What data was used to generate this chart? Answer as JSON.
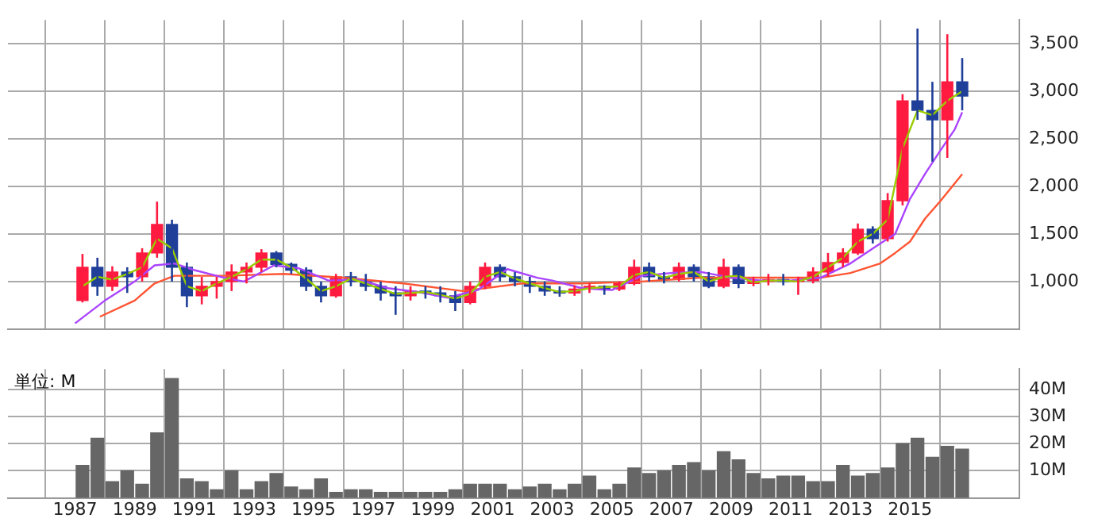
{
  "chart_data": [
    {
      "type": "candlestick",
      "xlim": [
        "1984-10",
        "2018-09"
      ],
      "xticks": [
        "1987",
        "1989",
        "1991",
        "1993",
        "1995",
        "1997",
        "1999",
        "2001",
        "2003",
        "2005",
        "2007",
        "2009",
        "2011",
        "2013",
        "2015"
      ],
      "ylim": [
        500,
        3750
      ],
      "yticks": [
        {
          "value": 1000,
          "label": "1,000"
        },
        {
          "value": 1500,
          "label": "1,500"
        },
        {
          "value": 2000,
          "label": "2,000"
        },
        {
          "value": 2500,
          "label": "2,500"
        },
        {
          "value": 3000,
          "label": "3,000"
        },
        {
          "value": 3500,
          "label": "3,500"
        }
      ],
      "tick_labels": "y",
      "grid": true,
      "legend": false,
      "marker": "none",
      "x": [
        "1987-04",
        "1987-10",
        "1988-04",
        "1988-10",
        "1989-04",
        "1989-10",
        "1990-04",
        "1990-10",
        "1991-04",
        "1991-10",
        "1992-04",
        "1992-10",
        "1993-04",
        "1993-10",
        "1994-04",
        "1994-10",
        "1995-04",
        "1995-10",
        "1996-04",
        "1996-10",
        "1997-04",
        "1997-10",
        "1998-04",
        "1998-10",
        "1999-04",
        "1999-10",
        "2000-04",
        "2000-10",
        "2001-04",
        "2001-10",
        "2002-04",
        "2002-10",
        "2003-04",
        "2003-10",
        "2004-04",
        "2004-10",
        "2005-04",
        "2005-10",
        "2006-04",
        "2006-10",
        "2007-04",
        "2007-10",
        "2008-04",
        "2008-10",
        "2009-04",
        "2009-10",
        "2010-04",
        "2010-10",
        "2011-04",
        "2011-10",
        "2012-04",
        "2012-10",
        "2013-04",
        "2013-10",
        "2014-04",
        "2014-10",
        "2015-04",
        "2015-10",
        "2016-04",
        "2016-10"
      ],
      "ohlc": [
        [
          800,
          1290,
          780,
          1150
        ],
        [
          1150,
          1250,
          850,
          950
        ],
        [
          950,
          1160,
          900,
          1100
        ],
        [
          1100,
          1150,
          880,
          1050
        ],
        [
          1050,
          1350,
          1000,
          1300
        ],
        [
          1300,
          1840,
          1250,
          1600
        ],
        [
          1600,
          1650,
          1000,
          1150
        ],
        [
          1150,
          1200,
          730,
          850
        ],
        [
          850,
          1050,
          760,
          950
        ],
        [
          950,
          1050,
          820,
          1000
        ],
        [
          1000,
          1180,
          900,
          1100
        ],
        [
          1100,
          1200,
          980,
          1150
        ],
        [
          1150,
          1340,
          1100,
          1300
        ],
        [
          1300,
          1320,
          1150,
          1180
        ],
        [
          1180,
          1200,
          1080,
          1120
        ],
        [
          1120,
          1150,
          900,
          950
        ],
        [
          950,
          1000,
          780,
          850
        ],
        [
          850,
          1080,
          830,
          1050
        ],
        [
          1050,
          1100,
          950,
          1000
        ],
        [
          1000,
          1080,
          900,
          950
        ],
        [
          950,
          1000,
          800,
          880
        ],
        [
          880,
          950,
          650,
          850
        ],
        [
          850,
          950,
          800,
          900
        ],
        [
          900,
          950,
          820,
          880
        ],
        [
          880,
          950,
          780,
          850
        ],
        [
          850,
          900,
          690,
          780
        ],
        [
          780,
          1000,
          760,
          950
        ],
        [
          950,
          1200,
          920,
          1150
        ],
        [
          1150,
          1180,
          1000,
          1050
        ],
        [
          1050,
          1100,
          950,
          1000
        ],
        [
          1000,
          1050,
          880,
          950
        ],
        [
          950,
          1000,
          850,
          900
        ],
        [
          900,
          950,
          840,
          880
        ],
        [
          880,
          960,
          850,
          920
        ],
        [
          920,
          980,
          880,
          950
        ],
        [
          950,
          960,
          860,
          920
        ],
        [
          920,
          1000,
          900,
          980
        ],
        [
          980,
          1230,
          960,
          1150
        ],
        [
          1150,
          1200,
          1000,
          1050
        ],
        [
          1050,
          1100,
          980,
          1020
        ],
        [
          1020,
          1200,
          1000,
          1150
        ],
        [
          1150,
          1180,
          1000,
          1050
        ],
        [
          1050,
          1100,
          930,
          950
        ],
        [
          950,
          1240,
          930,
          1150
        ],
        [
          1150,
          1180,
          930,
          980
        ],
        [
          980,
          1050,
          950,
          1000
        ],
        [
          1000,
          1080,
          960,
          1020
        ],
        [
          1020,
          1080,
          960,
          1000
        ],
        [
          1000,
          1050,
          860,
          1010
        ],
        [
          1010,
          1150,
          980,
          1100
        ],
        [
          1100,
          1300,
          1050,
          1200
        ],
        [
          1200,
          1350,
          1150,
          1300
        ],
        [
          1300,
          1610,
          1280,
          1550
        ],
        [
          1550,
          1580,
          1400,
          1450
        ],
        [
          1450,
          1930,
          1420,
          1850
        ],
        [
          1850,
          2970,
          1800,
          2900
        ],
        [
          2900,
          3660,
          2700,
          2800
        ],
        [
          2800,
          3100,
          2260,
          2700
        ],
        [
          2700,
          3600,
          2300,
          3100
        ],
        [
          3100,
          3350,
          2800,
          2950
        ]
      ],
      "colors": [
        "#ff1a40",
        "#1f3f99",
        "#ff1a40",
        "#1f3f99",
        "#ff1a40",
        "#ff1a40",
        "#1f3f99",
        "#1f3f99",
        "#ff1a40",
        "#ff1a40",
        "#ff1a40",
        "#ff1a40",
        "#ff1a40",
        "#1f3f99",
        "#1f3f99",
        "#1f3f99",
        "#1f3f99",
        "#ff1a40",
        "#1f3f99",
        "#1f3f99",
        "#1f3f99",
        "#1f3f99",
        "#ff1a40",
        "#1f3f99",
        "#1f3f99",
        "#1f3f99",
        "#ff1a40",
        "#ff1a40",
        "#1f3f99",
        "#1f3f99",
        "#1f3f99",
        "#1f3f99",
        "#1f3f99",
        "#ff1a40",
        "#ff1a40",
        "#1f3f99",
        "#ff1a40",
        "#ff1a40",
        "#1f3f99",
        "#1f3f99",
        "#ff1a40",
        "#1f3f99",
        "#1f3f99",
        "#ff1a40",
        "#1f3f99",
        "#ff1a40",
        "#ff1a40",
        "#1f3f99",
        "#ff1a40",
        "#ff1a40",
        "#ff1a40",
        "#ff1a40",
        "#ff1a40",
        "#1f3f99",
        "#ff1a40",
        "#ff1a40",
        "#1f3f99",
        "#1f3f99",
        "#ff1a40",
        "#1f3f99"
      ],
      "series": [
        {
          "type": "line",
          "color": "#99cc00",
          "x": [
            "1987-04",
            "1987-10",
            "1988-04",
            "1988-10",
            "1989-04",
            "1989-10",
            "1990-04",
            "1990-10",
            "1991-04",
            "1991-10",
            "1992-04",
            "1992-10",
            "1993-04",
            "1993-10",
            "1994-04",
            "1994-10",
            "1995-04",
            "1995-10",
            "1996-04",
            "1996-10",
            "1997-04",
            "1997-10",
            "1998-04",
            "1998-10",
            "1999-04",
            "1999-10",
            "2000-04",
            "2000-10",
            "2001-04",
            "2001-10",
            "2002-04",
            "2002-10",
            "2003-04",
            "2003-10",
            "2004-04",
            "2004-10",
            "2005-04",
            "2005-10",
            "2006-04",
            "2006-10",
            "2007-04",
            "2007-10",
            "2008-04",
            "2008-10",
            "2009-04",
            "2009-10",
            "2010-04",
            "2010-10",
            "2011-04",
            "2011-10",
            "2012-04",
            "2012-10",
            "2013-04",
            "2013-10",
            "2014-04",
            "2014-10",
            "2015-04",
            "2015-10",
            "2016-04",
            "2016-10"
          ],
          "values": [
            950,
            1050,
            1020,
            1080,
            1150,
            1450,
            1350,
            950,
            900,
            980,
            1050,
            1130,
            1230,
            1230,
            1150,
            1030,
            900,
            950,
            1030,
            980,
            920,
            870,
            880,
            890,
            860,
            820,
            870,
            1050,
            1100,
            1030,
            980,
            930,
            890,
            900,
            930,
            940,
            950,
            1070,
            1100,
            1040,
            1080,
            1100,
            1000,
            1050,
            1060,
            990,
            1010,
            1010,
            1000,
            1050,
            1150,
            1250,
            1420,
            1500,
            1650,
            2400,
            2800,
            2750,
            2900,
            3000
          ]
        },
        {
          "type": "line",
          "color": "#aa44ff",
          "x": [
            "1987-01",
            "1988-01",
            "1989-01",
            "1989-09",
            "1990-05",
            "1991-01",
            "1992-01",
            "1992-09",
            "1993-09",
            "1994-07",
            "1995-07",
            "1996-07",
            "1997-07",
            "1998-07",
            "1999-07",
            "2000-07",
            "2001-07",
            "2002-07",
            "2003-01",
            "2004-01",
            "2005-01",
            "2006-01",
            "2007-01",
            "2008-01",
            "2009-01",
            "2010-01",
            "2011-01",
            "2012-01",
            "2013-01",
            "2014-01",
            "2014-07",
            "2015-01",
            "2015-07",
            "2016-01",
            "2016-07",
            "2016-10"
          ],
          "values": [
            560,
            800,
            1000,
            1170,
            1190,
            1120,
            1040,
            1000,
            1170,
            1140,
            1010,
            1020,
            930,
            890,
            830,
            910,
            1130,
            1040,
            1010,
            930,
            910,
            1060,
            1090,
            1100,
            1040,
            1010,
            1010,
            1040,
            1190,
            1400,
            1500,
            1870,
            2130,
            2370,
            2600,
            2780
          ]
        },
        {
          "type": "line",
          "color": "#ff5533",
          "x": [
            "1987-11",
            "1989-01",
            "1989-09",
            "1990-05",
            "1992-01",
            "1994-01",
            "1996-01",
            "1998-01",
            "2000-01",
            "2002-01",
            "2004-01",
            "2006-01",
            "2008-01",
            "2010-01",
            "2012-01",
            "2013-01",
            "2014-01",
            "2014-07",
            "2015-01",
            "2015-07",
            "2016-01",
            "2016-10"
          ],
          "values": [
            630,
            800,
            980,
            1060,
            1060,
            1080,
            1040,
            980,
            900,
            980,
            980,
            1000,
            1040,
            1040,
            1040,
            1090,
            1190,
            1300,
            1420,
            1660,
            1840,
            2130
          ]
        }
      ]
    },
    {
      "type": "bar",
      "color": "#666666",
      "annotations": [
        "単位: M"
      ],
      "xlim": [
        "1984-10",
        "2018-09"
      ],
      "xticks": [
        "1987",
        "1989",
        "1991",
        "1993",
        "1995",
        "1997",
        "1999",
        "2001",
        "2003",
        "2005",
        "2007",
        "2009",
        "2011",
        "2013",
        "2015"
      ],
      "ylim": [
        0,
        47.5
      ],
      "yticks": [
        {
          "value": 10,
          "label": "10M"
        },
        {
          "value": 20,
          "label": "20M"
        },
        {
          "value": 30,
          "label": "30M"
        },
        {
          "value": 40,
          "label": "40M"
        }
      ],
      "grid": true,
      "legend": false,
      "x": [
        "1987-04",
        "1987-10",
        "1988-04",
        "1988-10",
        "1989-04",
        "1989-10",
        "1990-04",
        "1990-10",
        "1991-04",
        "1991-10",
        "1992-04",
        "1992-10",
        "1993-04",
        "1993-10",
        "1994-04",
        "1994-10",
        "1995-04",
        "1995-10",
        "1996-04",
        "1996-10",
        "1997-04",
        "1997-10",
        "1998-04",
        "1998-10",
        "1999-04",
        "1999-10",
        "2000-04",
        "2000-10",
        "2001-04",
        "2001-10",
        "2002-04",
        "2002-10",
        "2003-04",
        "2003-10",
        "2004-04",
        "2004-10",
        "2005-04",
        "2005-10",
        "2006-04",
        "2006-10",
        "2007-04",
        "2007-10",
        "2008-04",
        "2008-10",
        "2009-04",
        "2009-10",
        "2010-04",
        "2010-10",
        "2011-04",
        "2011-10",
        "2012-04",
        "2012-10",
        "2013-04",
        "2013-10",
        "2014-04",
        "2014-10",
        "2015-04",
        "2015-10",
        "2016-04",
        "2016-10"
      ],
      "values": [
        12,
        22,
        6,
        10,
        5,
        24,
        44,
        7,
        6,
        3,
        10,
        3,
        6,
        9,
        4,
        3,
        7,
        2,
        3,
        3,
        2,
        2,
        2,
        2,
        2,
        3,
        5,
        5,
        5,
        3,
        4,
        5,
        3,
        5,
        8,
        3,
        5,
        11,
        9,
        10,
        12,
        13,
        10,
        17,
        14,
        9,
        7,
        8,
        8,
        6,
        6,
        12,
        8,
        9,
        11,
        20,
        22,
        15,
        19,
        18
      ]
    }
  ]
}
